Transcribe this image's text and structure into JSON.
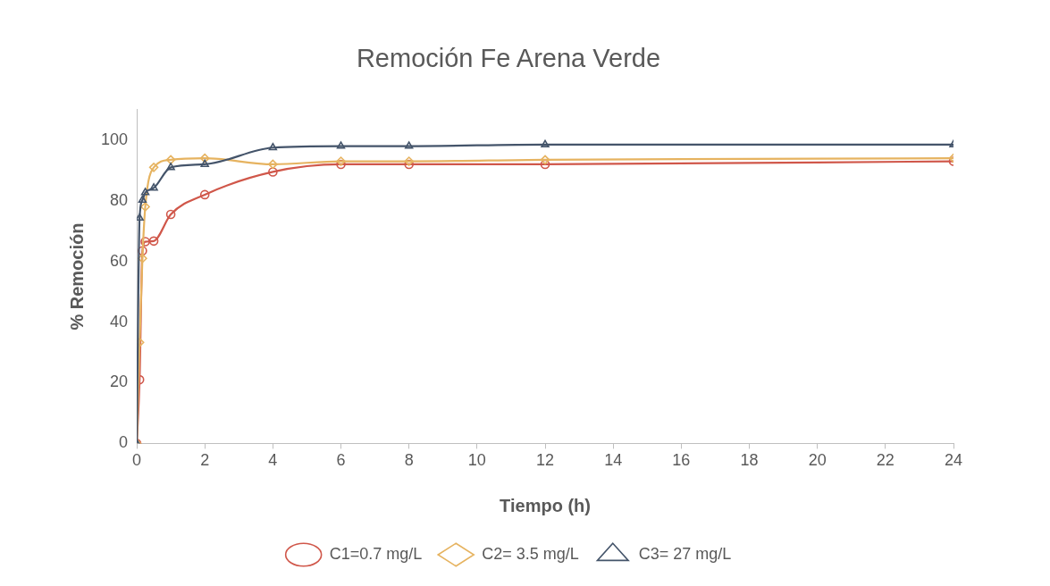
{
  "chart_data": {
    "type": "line",
    "title": "Remoción Fe Arena Verde",
    "xlabel": "Tiempo (h)",
    "ylabel": "% Remoción",
    "x": [
      0,
      0.083,
      0.167,
      0.25,
      0.5,
      1,
      2,
      4,
      6,
      8,
      12,
      24
    ],
    "series": [
      {
        "name": "C1=0.7 mg/L",
        "color": "#d0574a",
        "marker": "circle",
        "values": [
          0,
          21,
          63.5,
          66.5,
          66.7,
          75.5,
          82,
          89.5,
          92,
          92,
          92,
          93
        ]
      },
      {
        "name": "C2= 3.5 mg/L",
        "color": "#e6b360",
        "marker": "diamond",
        "values": [
          0,
          33.3,
          61,
          78,
          91,
          93.5,
          94,
          92,
          93,
          93,
          93.5,
          94
        ]
      },
      {
        "name": "C3= 27 mg/L",
        "color": "#44546a",
        "marker": "triangle",
        "values": [
          0,
          74.3,
          80.2,
          82.7,
          84.2,
          91,
          92,
          97.5,
          98,
          98,
          98.5,
          98.5
        ]
      }
    ],
    "xlim": [
      0,
      24
    ],
    "xticks": [
      0,
      2,
      4,
      6,
      8,
      10,
      12,
      14,
      16,
      18,
      20,
      22,
      24
    ],
    "ylim": [
      0,
      110
    ],
    "yticks": [
      0,
      20,
      40,
      60,
      80,
      100
    ],
    "grid": false,
    "legend": "bottom",
    "line_style": "solid"
  }
}
